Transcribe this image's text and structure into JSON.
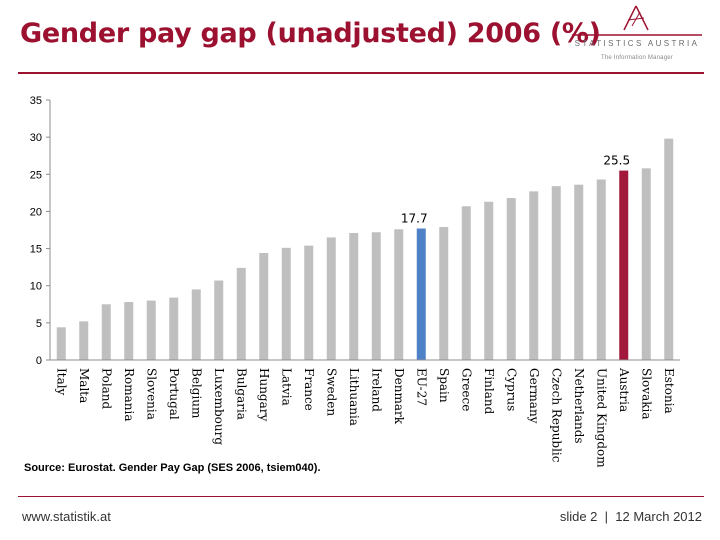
{
  "title": "Gender pay gap (unadjusted) 2006 (%)",
  "logo": {
    "name": "STATISTICS AUSTRIA",
    "tagline": "The Information Manager"
  },
  "source": "Source: Eurostat. Gender Pay Gap (SES 2006, tsiem040).",
  "footer": {
    "url": "www.statistik.at",
    "slide": "slide 2",
    "date": "12 March 2012"
  },
  "colors": {
    "brand": "#9c1030",
    "bar_default": "#bfbfbf",
    "bar_eu": "#4f81c7",
    "bar_austria": "#a1183a"
  },
  "chart_data": {
    "type": "bar",
    "categories": [
      "Italy",
      "Malta",
      "Poland",
      "Romania",
      "Slovenia",
      "Portugal",
      "Belgium",
      "Luxembourg",
      "Bulgaria",
      "Hungary",
      "Latvia",
      "France",
      "Sweden",
      "Lithuania",
      "Ireland",
      "Denmark",
      "EU-27",
      "Spain",
      "Greece",
      "Finland",
      "Cyprus",
      "Germany",
      "Czech Republic",
      "Netherlands",
      "United Kingdom",
      "Austria",
      "Slovakia",
      "Estonia"
    ],
    "values": [
      4.4,
      5.2,
      7.5,
      7.8,
      8.0,
      8.4,
      9.5,
      10.7,
      12.4,
      14.4,
      15.1,
      15.4,
      16.5,
      17.1,
      17.2,
      17.6,
      17.7,
      17.9,
      20.7,
      21.3,
      21.8,
      22.7,
      23.4,
      23.6,
      24.3,
      25.5,
      25.8,
      29.8
    ],
    "highlight": {
      "EU-27": "eu",
      "Austria": "austria"
    },
    "data_labels": [
      {
        "category": "EU-27",
        "text": "17.7"
      },
      {
        "category": "Austria",
        "text": "25.5"
      }
    ],
    "ylim": [
      0,
      35
    ],
    "yticks": [
      "0",
      "5",
      "10",
      "15",
      "20",
      "25",
      "30",
      "35"
    ],
    "grid": false,
    "legend": "none"
  }
}
